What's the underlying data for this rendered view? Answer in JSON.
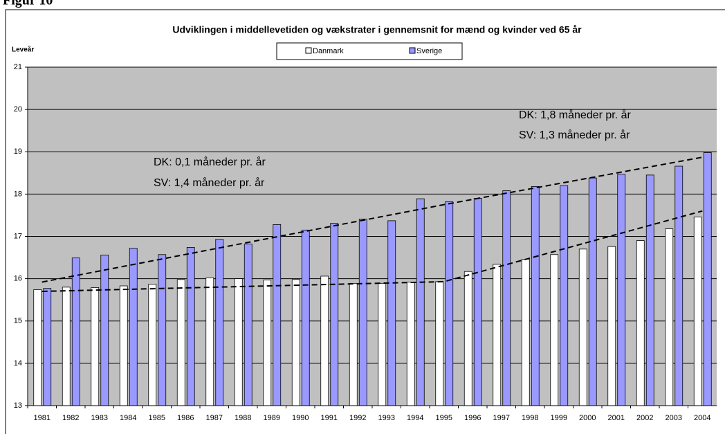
{
  "figure_label": "Figur 10",
  "chart_data": {
    "type": "bar",
    "title": "Udviklingen i middellevetiden og vækstrater i gennemsnit for mænd og kvinder ved 65 år",
    "y_label": "Leveår",
    "categories": [
      "1981",
      "1982",
      "1983",
      "1984",
      "1985",
      "1986",
      "1987",
      "1988",
      "1989",
      "1990",
      "1991",
      "1992",
      "1993",
      "1994",
      "1995",
      "1996",
      "1997",
      "1998",
      "1999",
      "2000",
      "2001",
      "2002",
      "2003",
      "2004"
    ],
    "series": [
      {
        "name": "Danmark",
        "color": "#ffffff",
        "values": [
          15.74,
          15.8,
          15.79,
          15.83,
          15.87,
          15.98,
          16.02,
          16.0,
          15.97,
          15.98,
          16.06,
          15.89,
          15.89,
          15.92,
          15.93,
          16.17,
          16.34,
          16.46,
          16.57,
          16.7,
          16.76,
          16.9,
          17.18,
          17.46
        ]
      },
      {
        "name": "Sverige",
        "color": "#9999ff",
        "values": [
          15.77,
          16.49,
          16.56,
          16.72,
          16.57,
          16.74,
          16.93,
          16.82,
          17.28,
          17.15,
          17.31,
          17.41,
          17.37,
          17.89,
          17.82,
          17.9,
          18.08,
          18.18,
          18.2,
          18.38,
          18.47,
          18.45,
          18.66,
          18.98
        ]
      }
    ],
    "trend_lines": [
      {
        "x": [
          "1981",
          "1995",
          "2004"
        ],
        "values": [
          15.7,
          15.93,
          17.6
        ]
      },
      {
        "x": [
          "1981",
          "1995",
          "2004"
        ],
        "values": [
          15.92,
          17.75,
          18.87
        ]
      }
    ],
    "annotations": [
      "DK: 0,1 måneder pr. år",
      "SV: 1,4 måneder pr. år",
      "DK: 1,8 måneder pr. år",
      "SV: 1,3 måneder pr. år"
    ],
    "ylim": [
      13,
      21
    ],
    "yticks": [
      13,
      14,
      15,
      16,
      17,
      18,
      19,
      20,
      21
    ],
    "grid": true,
    "plot_background": "#c0c0c0",
    "legend": "top"
  }
}
